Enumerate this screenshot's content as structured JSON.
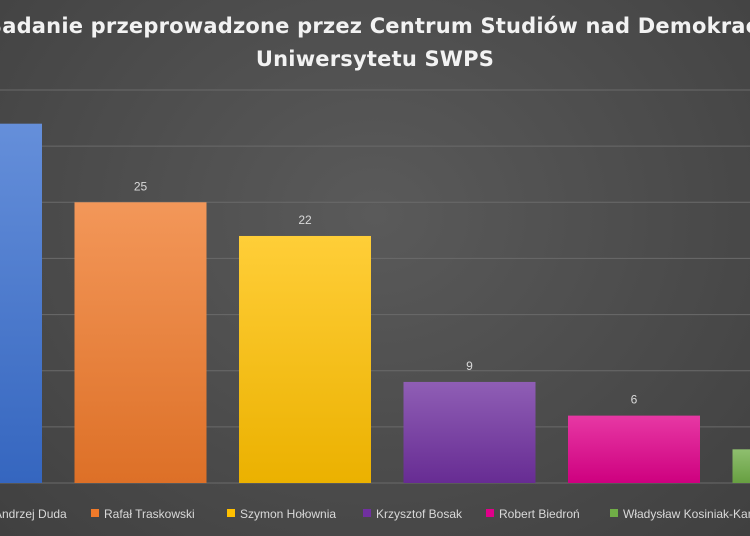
{
  "chart_data": {
    "type": "bar",
    "title_lines": [
      "Badanie przeprowadzone przez Centrum Studiów nad Demokracją",
      "Uniwersytetu SWPS"
    ],
    "categories": [
      "Andrzej Duda",
      "Rafał Traskowski",
      "Szymon Hołownia",
      "Krzysztof Bosak",
      "Robert Biedroń",
      "Władysław Kosiniak-Kamysz"
    ],
    "values": [
      32,
      25,
      22,
      9,
      6,
      3
    ],
    "data_labels": [
      "",
      "25",
      "22",
      "9",
      "6",
      ""
    ],
    "ylim": [
      0,
      35
    ],
    "gridlines": true,
    "legend_position": "bottom",
    "colors": [
      "#3a6fd0",
      "#f07a2a",
      "#ffc000",
      "#7030a0",
      "#e0008a",
      "#70ad47"
    ]
  }
}
